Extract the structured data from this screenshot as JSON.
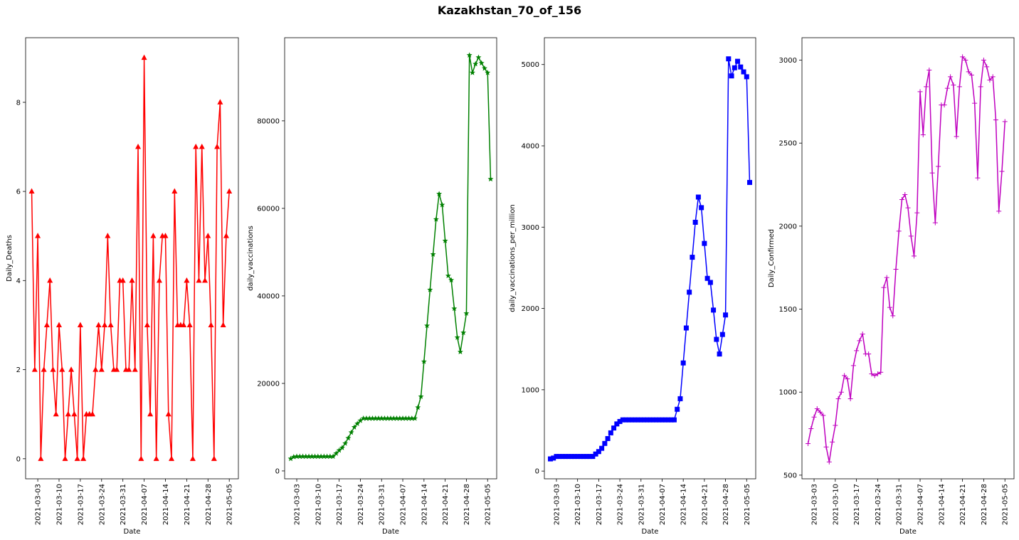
{
  "figure": {
    "suptitle": "Kazakhstan_70_of_156",
    "background": "#ffffff"
  },
  "chart_data": [
    {
      "type": "line",
      "xlabel": "Date",
      "ylabel": "Daily_Deaths",
      "color": "#ff0000",
      "marker": "triangle",
      "x_start": "2021-03-01",
      "xlim": [
        "2021-02-27",
        "2021-05-08"
      ],
      "x_ticks": [
        "2021-03-03",
        "2021-03-10",
        "2021-03-17",
        "2021-03-24",
        "2021-03-31",
        "2021-04-07",
        "2021-04-14",
        "2021-04-21",
        "2021-04-28",
        "2021-05-05"
      ],
      "ylim": [
        -0.45,
        9.45
      ],
      "y_ticks": [
        0,
        2,
        4,
        6,
        8
      ],
      "y_tick_labels": [
        "0",
        "2",
        "4",
        "6",
        "8"
      ],
      "values": [
        6,
        2,
        5,
        0,
        2,
        3,
        4,
        2,
        1,
        3,
        2,
        0,
        1,
        2,
        1,
        0,
        3,
        0,
        1,
        1,
        1,
        2,
        3,
        2,
        3,
        5,
        3,
        2,
        2,
        4,
        4,
        2,
        2,
        4,
        2,
        7,
        0,
        9,
        3,
        1,
        5,
        0,
        4,
        5,
        5,
        1,
        0,
        6,
        3,
        3,
        3,
        4,
        3,
        0,
        7,
        4,
        7,
        4,
        5,
        3,
        0,
        7,
        8,
        3,
        5,
        6
      ]
    },
    {
      "type": "line",
      "xlabel": "Date",
      "ylabel": "daily_vaccinations",
      "color": "#008000",
      "marker": "star",
      "x_start": "2021-03-01",
      "xlim": [
        "2021-02-27",
        "2021-05-08"
      ],
      "x_ticks": [
        "2021-03-03",
        "2021-03-10",
        "2021-03-17",
        "2021-03-24",
        "2021-03-31",
        "2021-04-07",
        "2021-04-14",
        "2021-04-21",
        "2021-04-28",
        "2021-05-05"
      ],
      "ylim": [
        -1800,
        99000
      ],
      "y_ticks": [
        0,
        20000,
        40000,
        60000,
        80000
      ],
      "y_tick_labels": [
        "0",
        "20000",
        "40000",
        "60000",
        "80000"
      ],
      "values": [
        2800,
        3200,
        3300,
        3300,
        3300,
        3300,
        3300,
        3300,
        3300,
        3300,
        3300,
        3300,
        3300,
        3300,
        3300,
        4000,
        4700,
        5300,
        6300,
        7500,
        8800,
        10000,
        10800,
        11500,
        12000,
        12000,
        12000,
        12000,
        12000,
        12000,
        12000,
        12000,
        12000,
        12000,
        12000,
        12000,
        12000,
        12000,
        12000,
        12000,
        12000,
        12000,
        14500,
        17000,
        25000,
        33200,
        41400,
        49500,
        57500,
        63300,
        60800,
        52600,
        44600,
        43600,
        37100,
        30500,
        27200,
        31600,
        36000,
        95000,
        91000,
        93000,
        94500,
        93200,
        92000,
        91000,
        66700
      ]
    },
    {
      "type": "line",
      "xlabel": "Date",
      "ylabel": "daily_vaccinations_per_million",
      "color": "#0000ff",
      "marker": "square",
      "x_start": "2021-03-01",
      "xlim": [
        "2021-02-27",
        "2021-05-08"
      ],
      "x_ticks": [
        "2021-03-03",
        "2021-03-10",
        "2021-03-17",
        "2021-03-24",
        "2021-03-31",
        "2021-04-07",
        "2021-04-14",
        "2021-04-21",
        "2021-04-28",
        "2021-05-05"
      ],
      "ylim": [
        -95,
        5330
      ],
      "y_ticks": [
        0,
        1000,
        2000,
        3000,
        4000,
        5000
      ],
      "y_tick_labels": [
        "0",
        "1000",
        "2000",
        "3000",
        "4000",
        "5000"
      ],
      "values": [
        150,
        160,
        180,
        180,
        180,
        180,
        180,
        180,
        180,
        180,
        180,
        180,
        180,
        180,
        180,
        210,
        240,
        280,
        340,
        400,
        470,
        530,
        580,
        610,
        630,
        630,
        630,
        630,
        630,
        630,
        630,
        630,
        630,
        630,
        630,
        630,
        630,
        630,
        630,
        630,
        630,
        630,
        760,
        890,
        1330,
        1760,
        2200,
        2630,
        3060,
        3370,
        3240,
        2800,
        2370,
        2320,
        1980,
        1620,
        1440,
        1680,
        1920,
        5070,
        4860,
        4960,
        5040,
        4970,
        4910,
        4850,
        3550
      ]
    },
    {
      "type": "line",
      "xlabel": "Date",
      "ylabel": "Daily_Confirmed",
      "color": "#bf00bf",
      "marker": "plus",
      "x_start": "2021-03-01",
      "xlim": [
        "2021-02-27",
        "2021-05-08"
      ],
      "x_ticks": [
        "2021-03-03",
        "2021-03-10",
        "2021-03-17",
        "2021-03-24",
        "2021-03-31",
        "2021-04-07",
        "2021-04-14",
        "2021-04-21",
        "2021-04-28",
        "2021-05-05"
      ],
      "ylim": [
        478,
        3135
      ],
      "y_ticks": [
        500,
        1000,
        1500,
        2000,
        2500,
        3000
      ],
      "y_tick_labels": [
        "500",
        "1000",
        "1500",
        "2000",
        "2500",
        "3000"
      ],
      "values": [
        690,
        780,
        850,
        900,
        880,
        860,
        670,
        580,
        700,
        800,
        960,
        1000,
        1100,
        1080,
        960,
        1160,
        1250,
        1310,
        1350,
        1230,
        1230,
        1110,
        1100,
        1110,
        1120,
        1630,
        1690,
        1510,
        1460,
        1740,
        1970,
        2160,
        2190,
        2110,
        1940,
        1820,
        2080,
        2810,
        2550,
        2840,
        2940,
        2320,
        2020,
        2360,
        2730,
        2730,
        2830,
        2900,
        2850,
        2540,
        2840,
        3020,
        3000,
        2930,
        2910,
        2740,
        2290,
        2840,
        3000,
        2960,
        2880,
        2900,
        2640,
        2090,
        2330,
        2630
      ]
    }
  ]
}
